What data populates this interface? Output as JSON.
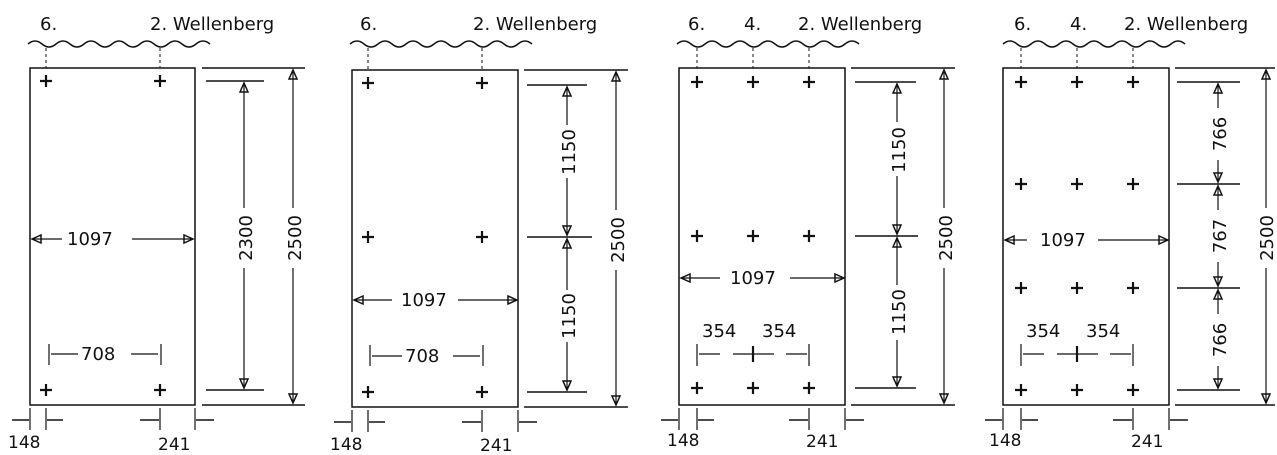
{
  "labels": {
    "wellenberg": "2. Wellenberg",
    "six": "6.",
    "four": "4.",
    "dim_1097": "1097",
    "dim_708": "708",
    "dim_2300": "2300",
    "dim_2500": "2500",
    "dim_1150": "1150",
    "dim_354": "354",
    "dim_766": "766",
    "dim_767": "767",
    "dim_148": "148",
    "dim_241": "241"
  }
}
